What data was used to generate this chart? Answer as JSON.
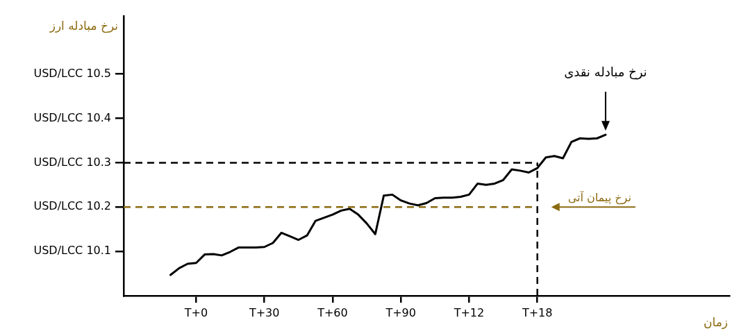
{
  "chart_data": {
    "type": "line",
    "ylabel": "نرخ مبادله ارز",
    "xlabel": "زمان",
    "marker": "none",
    "line_style": "solid",
    "categories": [
      null,
      null,
      null,
      null,
      null,
      null,
      null,
      null,
      "T+0",
      null,
      null,
      null,
      null,
      null,
      null,
      null,
      "T+30",
      null,
      null,
      null,
      null,
      null,
      null,
      null,
      "T+60",
      null,
      null,
      null,
      null,
      null,
      null,
      null,
      "T+90",
      null,
      null,
      null,
      null,
      null,
      null,
      null,
      "T+12",
      null,
      null,
      null,
      null,
      null,
      null,
      null,
      "T+18",
      null,
      null,
      null,
      null,
      null,
      null,
      null,
      null,
      null,
      null,
      null,
      null,
      null,
      null,
      null,
      null,
      null,
      null,
      null,
      null,
      null,
      null
    ],
    "ylim": [
      10.0,
      10.63
    ],
    "yticks": [
      {
        "value": 10.1,
        "label": "10.1 USD/LCC"
      },
      {
        "value": 10.2,
        "label": "10.2 USD/LCC"
      },
      {
        "value": 10.3,
        "label": "10.3 USD/LCC"
      },
      {
        "value": 10.4,
        "label": "10.4 USD/LCC"
      },
      {
        "value": 10.5,
        "label": "10.5 USD/LCC"
      }
    ],
    "series": [
      {
        "color": "#000000",
        "values": [
          null,
          null,
          null,
          null,
          null,
          10.047,
          10.062,
          10.072,
          10.074,
          10.093,
          10.094,
          10.091,
          10.099,
          10.109,
          10.109,
          10.109,
          10.11,
          10.119,
          10.142,
          10.134,
          10.126,
          10.136,
          10.169,
          10.176,
          10.183,
          10.192,
          10.196,
          10.183,
          10.163,
          10.139,
          10.226,
          10.228,
          10.215,
          10.208,
          10.204,
          10.209,
          10.22,
          10.221,
          10.221,
          10.223,
          10.228,
          10.253,
          10.25,
          10.253,
          10.261,
          10.285,
          10.282,
          10.278,
          10.288,
          10.312,
          10.315,
          10.31,
          10.347,
          10.355,
          10.354,
          10.355,
          10.363,
          null,
          null,
          null,
          null,
          null,
          null,
          null,
          null,
          null,
          null,
          null,
          null,
          null,
          null
        ]
      }
    ],
    "ref_lines": [
      {
        "axis": "y",
        "value": 10.3,
        "color": "#000000",
        "line_style": "dashed"
      },
      {
        "axis": "y",
        "value": 10.2,
        "color": "#8b6a10",
        "line_style": "dashed",
        "label": "نرخ پیمان آتی"
      },
      {
        "axis": "x",
        "value": "T+18",
        "color": "#000000",
        "line_style": "dashed"
      }
    ],
    "annotations": [
      "نرخ مبادله نقدی"
    ]
  }
}
